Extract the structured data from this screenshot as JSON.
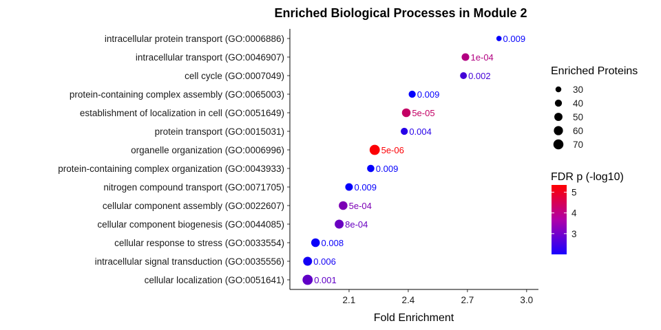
{
  "chart_data": {
    "type": "scatter",
    "title": "Enriched Biological Processes in Module 2",
    "xlabel": "Fold Enrichment",
    "ylabel": "",
    "xlim": [
      1.8,
      3.06
    ],
    "xticks": [
      2.1,
      2.4,
      2.7,
      3.0
    ],
    "xtick_labels": [
      "2.1",
      "2.4",
      "2.7",
      "3.0"
    ],
    "grid": false,
    "points": [
      {
        "term": "intracellular protein transport (GO:0006886)",
        "x": 2.86,
        "size": 26,
        "fdr_log": 2.05,
        "label": "0.009"
      },
      {
        "term": "intracellular transport (GO:0046907)",
        "x": 2.69,
        "size": 45,
        "fdr_log": 4.0,
        "label": "1e-04"
      },
      {
        "term": "cell cycle (GO:0007049)",
        "x": 2.68,
        "size": 38,
        "fdr_log": 2.7,
        "label": "0.002"
      },
      {
        "term": "protein-containing complex assembly (GO:0065003)",
        "x": 2.42,
        "size": 40,
        "fdr_log": 2.05,
        "label": "0.009"
      },
      {
        "term": "establishment of localization in cell (GO:0051649)",
        "x": 2.39,
        "size": 55,
        "fdr_log": 4.3,
        "label": "5e-05"
      },
      {
        "term": "protein transport (GO:0015031)",
        "x": 2.38,
        "size": 40,
        "fdr_log": 2.4,
        "label": "0.004"
      },
      {
        "term": "organelle organization (GO:0006996)",
        "x": 2.23,
        "size": 72,
        "fdr_log": 5.3,
        "label": "5e-06"
      },
      {
        "term": "protein-containing complex organization (GO:0043933)",
        "x": 2.21,
        "size": 42,
        "fdr_log": 2.05,
        "label": "0.009"
      },
      {
        "term": "nitrogen compound transport (GO:0071705)",
        "x": 2.1,
        "size": 45,
        "fdr_log": 2.05,
        "label": "0.009"
      },
      {
        "term": "cellular component assembly (GO:0022607)",
        "x": 2.07,
        "size": 55,
        "fdr_log": 3.3,
        "label": "5e-04"
      },
      {
        "term": "cellular component biogenesis (GO:0044085)",
        "x": 2.05,
        "size": 58,
        "fdr_log": 3.1,
        "label": "8e-04"
      },
      {
        "term": "cellular response to stress (GO:0033554)",
        "x": 1.93,
        "size": 55,
        "fdr_log": 2.1,
        "label": "0.008"
      },
      {
        "term": "intracellular signal transduction (GO:0035556)",
        "x": 1.89,
        "size": 58,
        "fdr_log": 2.2,
        "label": "0.006"
      },
      {
        "term": "cellular localization (GO:0051641)",
        "x": 1.89,
        "size": 72,
        "fdr_log": 3.0,
        "label": "0.001"
      }
    ],
    "size_legend": {
      "title": "Enriched Proteins",
      "values": [
        30,
        40,
        50,
        60,
        70
      ],
      "labels": [
        "30",
        "40",
        "50",
        "60",
        "70"
      ]
    },
    "color_legend": {
      "title": "FDR p (-log10)",
      "range": [
        2.0,
        5.35
      ],
      "ticks": [
        3,
        4,
        5
      ],
      "tick_labels": [
        "3",
        "4",
        "5"
      ],
      "low_color": "#0000ff",
      "mid_color": "#a000a0",
      "high_color": "#ff0000"
    }
  }
}
